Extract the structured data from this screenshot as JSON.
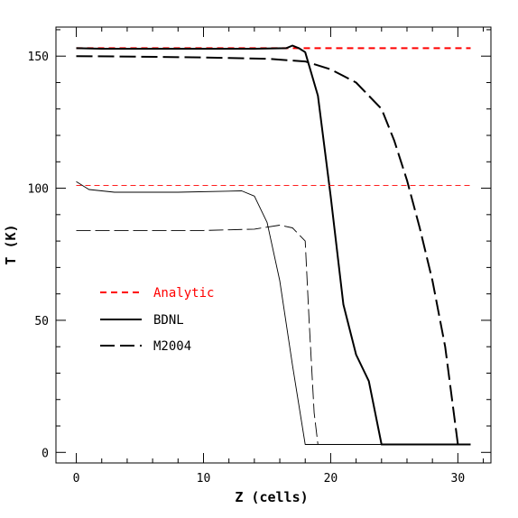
{
  "chart_data": {
    "type": "line",
    "title": "",
    "xlabel": "Z (cells)",
    "ylabel": "T (K)",
    "xlim": [
      -1.6,
      32.6
    ],
    "ylim": [
      -4,
      161
    ],
    "xticks_major": [
      0,
      10,
      20,
      30
    ],
    "yticks_major": [
      0,
      50,
      100,
      150
    ],
    "grid": false,
    "legend_placement": "center-left",
    "legend": [
      {
        "label": "Analytic",
        "style": "short-dash",
        "color": "#ff0000"
      },
      {
        "label": "BDNL",
        "style": "solid",
        "color": "#000000"
      },
      {
        "label": "M2004",
        "style": "long-dash",
        "color": "#000000"
      }
    ],
    "series": [
      {
        "name": "Analytic",
        "group": "upper",
        "color": "#ff0000",
        "style": "short-dash",
        "weight": "thick",
        "x": [
          0,
          31
        ],
        "y": [
          153,
          153
        ]
      },
      {
        "name": "BDNL",
        "group": "upper",
        "color": "#000000",
        "style": "solid",
        "weight": "thick",
        "x": [
          0,
          2,
          8,
          14,
          16.5,
          17,
          17.5,
          18,
          19,
          20,
          21,
          22,
          23,
          24,
          25,
          31
        ],
        "y": [
          153,
          152.8,
          152.8,
          152.8,
          153,
          154,
          153,
          151.5,
          135,
          97,
          56,
          37,
          27,
          3,
          3,
          3
        ]
      },
      {
        "name": "M2004",
        "group": "upper",
        "color": "#000000",
        "style": "long-dash",
        "weight": "thick",
        "x": [
          0,
          5,
          10,
          15,
          18,
          20,
          22,
          24,
          25,
          26,
          27,
          28,
          29,
          30,
          31
        ],
        "y": [
          150,
          149.8,
          149.5,
          149,
          148,
          145,
          140,
          130,
          118,
          103,
          85,
          65,
          40,
          3,
          3
        ]
      },
      {
        "name": "Analytic",
        "group": "lower",
        "color": "#ff0000",
        "style": "short-dash",
        "weight": "thin",
        "x": [
          0,
          31
        ],
        "y": [
          101,
          101
        ]
      },
      {
        "name": "BDNL",
        "group": "lower",
        "color": "#000000",
        "style": "solid",
        "weight": "thin",
        "x": [
          0,
          1,
          3,
          8,
          13,
          14,
          15,
          16,
          17,
          18,
          19,
          31
        ],
        "y": [
          102.5,
          99.5,
          98.5,
          98.5,
          99,
          97,
          87,
          65,
          33,
          3,
          3,
          3
        ]
      },
      {
        "name": "M2004",
        "group": "lower",
        "color": "#000000",
        "style": "long-dash",
        "weight": "thin",
        "x": [
          0,
          5,
          10,
          14,
          16,
          17,
          18,
          18.3,
          18.7,
          19,
          31
        ],
        "y": [
          84,
          84,
          84,
          84.5,
          86,
          85,
          80,
          50,
          15,
          3,
          3
        ]
      }
    ]
  }
}
